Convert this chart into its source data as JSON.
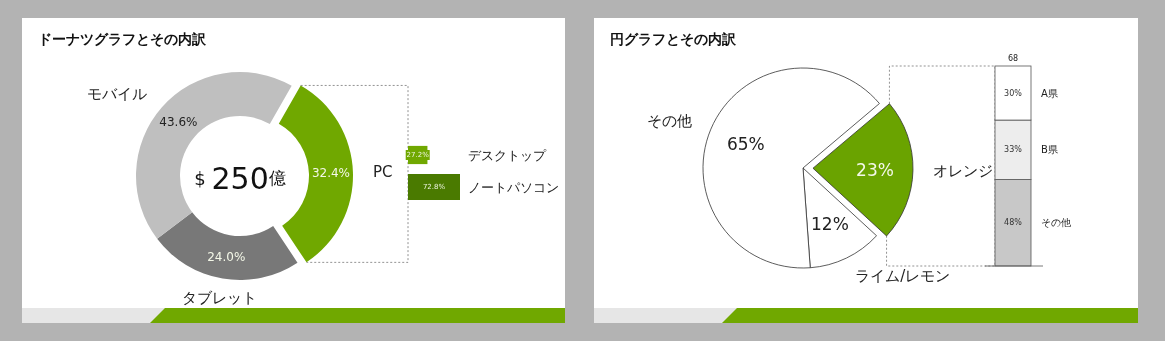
{
  "chart_data": [
    {
      "type": "donut",
      "title": "ドーナツグラフとその内訳",
      "categories": [
        "PC",
        "タブレット",
        "モバイル"
      ],
      "values": [
        32.4,
        24.0,
        43.6
      ],
      "colors": [
        "#70a800",
        "#787878",
        "#bfbfbf"
      ],
      "value_labels": [
        "32.4%",
        "24.0%",
        "43.6%"
      ],
      "annotations": [
        "$ 250億"
      ]
    },
    {
      "type": "bar",
      "orientation": "horizontal",
      "categories": [
        "デスクトップ",
        "ノートパソコン"
      ],
      "values": [
        27.2,
        72.8
      ],
      "colors": [
        "#70a800",
        "#4a7a00"
      ],
      "value_labels": [
        "27.2%",
        "72.8%"
      ]
    },
    {
      "type": "pie",
      "title": "円グラフとその内訳",
      "categories": [
        "オレンジ",
        "ライム/レモン",
        "その他"
      ],
      "values": [
        23,
        12,
        65
      ],
      "colors": [
        "#6aa300",
        "#ffffff",
        "#ffffff"
      ],
      "value_labels": [
        "23%",
        "12%",
        "65%"
      ]
    },
    {
      "type": "bar",
      "stacked": true,
      "categories": [
        null
      ],
      "series": [
        {
          "name": "その他",
          "color": "#c8c8c8",
          "values": [
            48
          ],
          "value_labels": [
            "48%"
          ]
        },
        {
          "name": "B県",
          "color": "#ededed",
          "values": [
            33
          ],
          "value_labels": [
            "33%"
          ]
        },
        {
          "name": "A県",
          "color": "#ffffff",
          "values": [
            30
          ],
          "value_labels": [
            "30%"
          ]
        }
      ],
      "annotations": [
        "68"
      ]
    }
  ]
}
